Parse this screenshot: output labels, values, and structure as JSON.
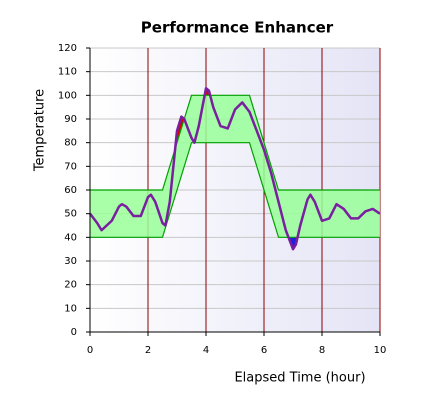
{
  "chart_data": {
    "type": "line",
    "title": "Performance Enhancer",
    "xlabel": "Elapsed Time (hour)",
    "ylabel": "Temperature",
    "xlim": [
      0,
      10
    ],
    "xticks": [
      0,
      2,
      4,
      6,
      8,
      10
    ],
    "ylim": [
      0,
      120
    ],
    "yticks": [
      0,
      10,
      20,
      30,
      40,
      50,
      60,
      70,
      80,
      90,
      100,
      110,
      120
    ],
    "grid": true,
    "band_color": "#99ff99",
    "band_edge_color": "#00a000",
    "above_color": "#dd0000",
    "below_color": "#2020dd",
    "series": [
      {
        "color": "#00a000",
        "x": [
          0,
          2.5,
          3.5,
          5.5,
          6.5,
          10
        ],
        "values": [
          60,
          60,
          100,
          100,
          60,
          60
        ]
      },
      {
        "color": "#00a000",
        "x": [
          0,
          2.5,
          3.5,
          5.5,
          6.5,
          10
        ],
        "values": [
          40,
          40,
          80,
          80,
          40,
          40
        ]
      },
      {
        "color": "#7a1fa0",
        "x": [
          0,
          0.25,
          0.4,
          0.75,
          1.0,
          1.1,
          1.25,
          1.5,
          1.75,
          2.0,
          2.1,
          2.25,
          2.5,
          2.6,
          2.75,
          3.0,
          3.15,
          3.25,
          3.5,
          3.6,
          3.75,
          4.0,
          4.1,
          4.25,
          4.5,
          4.75,
          5.0,
          5.25,
          5.5,
          5.75,
          6.0,
          6.25,
          6.5,
          6.75,
          7.0,
          7.1,
          7.25,
          7.5,
          7.6,
          7.75,
          8.0,
          8.25,
          8.5,
          8.75,
          9.0,
          9.25,
          9.5,
          9.75,
          10
        ],
        "values": [
          50,
          46,
          43,
          47,
          53,
          54,
          53,
          49,
          49,
          57,
          58,
          55,
          46,
          45,
          55,
          85,
          91,
          90,
          82,
          80,
          87,
          103,
          102,
          95,
          87,
          86,
          94,
          97,
          93,
          85,
          77,
          67,
          55,
          43,
          35,
          37,
          45,
          56,
          58,
          55,
          47,
          48,
          54,
          52,
          48,
          48,
          51,
          52,
          50
        ]
      }
    ]
  }
}
